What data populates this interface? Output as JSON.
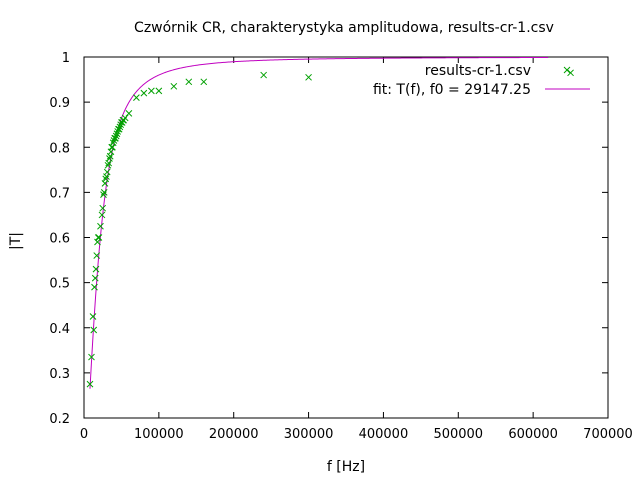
{
  "chart_data": {
    "type": "scatter",
    "title": "Czwórnik CR, charakterystyka amplitudowa, results-cr-1.csv",
    "xlabel": "f [Hz]",
    "ylabel": "|T|",
    "xlim": [
      0,
      700000
    ],
    "ylim": [
      0.2,
      1.0
    ],
    "x_ticks": [
      0,
      100000,
      200000,
      300000,
      400000,
      500000,
      600000,
      700000
    ],
    "y_ticks": [
      0.2,
      0.3,
      0.4,
      0.5,
      0.6,
      0.7,
      0.8,
      0.9,
      1.0
    ],
    "x_tick_labels": [
      "0",
      "100000",
      "200000",
      "300000",
      "400000",
      "500000",
      "600000",
      "700000"
    ],
    "y_tick_labels": [
      "0.2",
      "0.3",
      "0.4",
      "0.5",
      "0.6",
      "0.7",
      "0.8",
      "0.9",
      "1"
    ],
    "grid": false,
    "legend_position": "top-right",
    "series": [
      {
        "name": "results-cr-1.csv",
        "kind": "points",
        "marker": "x",
        "color": "#00a000",
        "x": [
          8000,
          10000,
          12000,
          13000,
          14000,
          15000,
          16000,
          17000,
          18000,
          19000,
          20000,
          22000,
          24000,
          25000,
          26000,
          27000,
          28000,
          29000,
          30000,
          31000,
          32000,
          33000,
          34000,
          35000,
          36000,
          37000,
          38000,
          39000,
          40000,
          41000,
          42000,
          43000,
          44000,
          45000,
          46000,
          47000,
          48000,
          49000,
          50000,
          51000,
          52000,
          53000,
          55000,
          60000,
          70000,
          80000,
          90000,
          100000,
          120000,
          140000,
          160000,
          240000,
          300000,
          650000
        ],
        "y": [
          0.275,
          0.335,
          0.425,
          0.395,
          0.49,
          0.51,
          0.53,
          0.56,
          0.59,
          0.6,
          0.6,
          0.625,
          0.65,
          0.665,
          0.695,
          0.7,
          0.72,
          0.73,
          0.735,
          0.745,
          0.76,
          0.765,
          0.775,
          0.78,
          0.79,
          0.8,
          0.8,
          0.81,
          0.815,
          0.82,
          0.82,
          0.825,
          0.83,
          0.835,
          0.84,
          0.84,
          0.845,
          0.85,
          0.855,
          0.855,
          0.86,
          0.86,
          0.865,
          0.875,
          0.91,
          0.92,
          0.925,
          0.925,
          0.935,
          0.945,
          0.945,
          0.96,
          0.955,
          0.965
        ]
      },
      {
        "name": "fit: T(f), f0 = 29147.25",
        "kind": "line",
        "color": "#c000c0",
        "f0": 29147.25,
        "x_range": [
          8000,
          620000
        ]
      }
    ]
  }
}
